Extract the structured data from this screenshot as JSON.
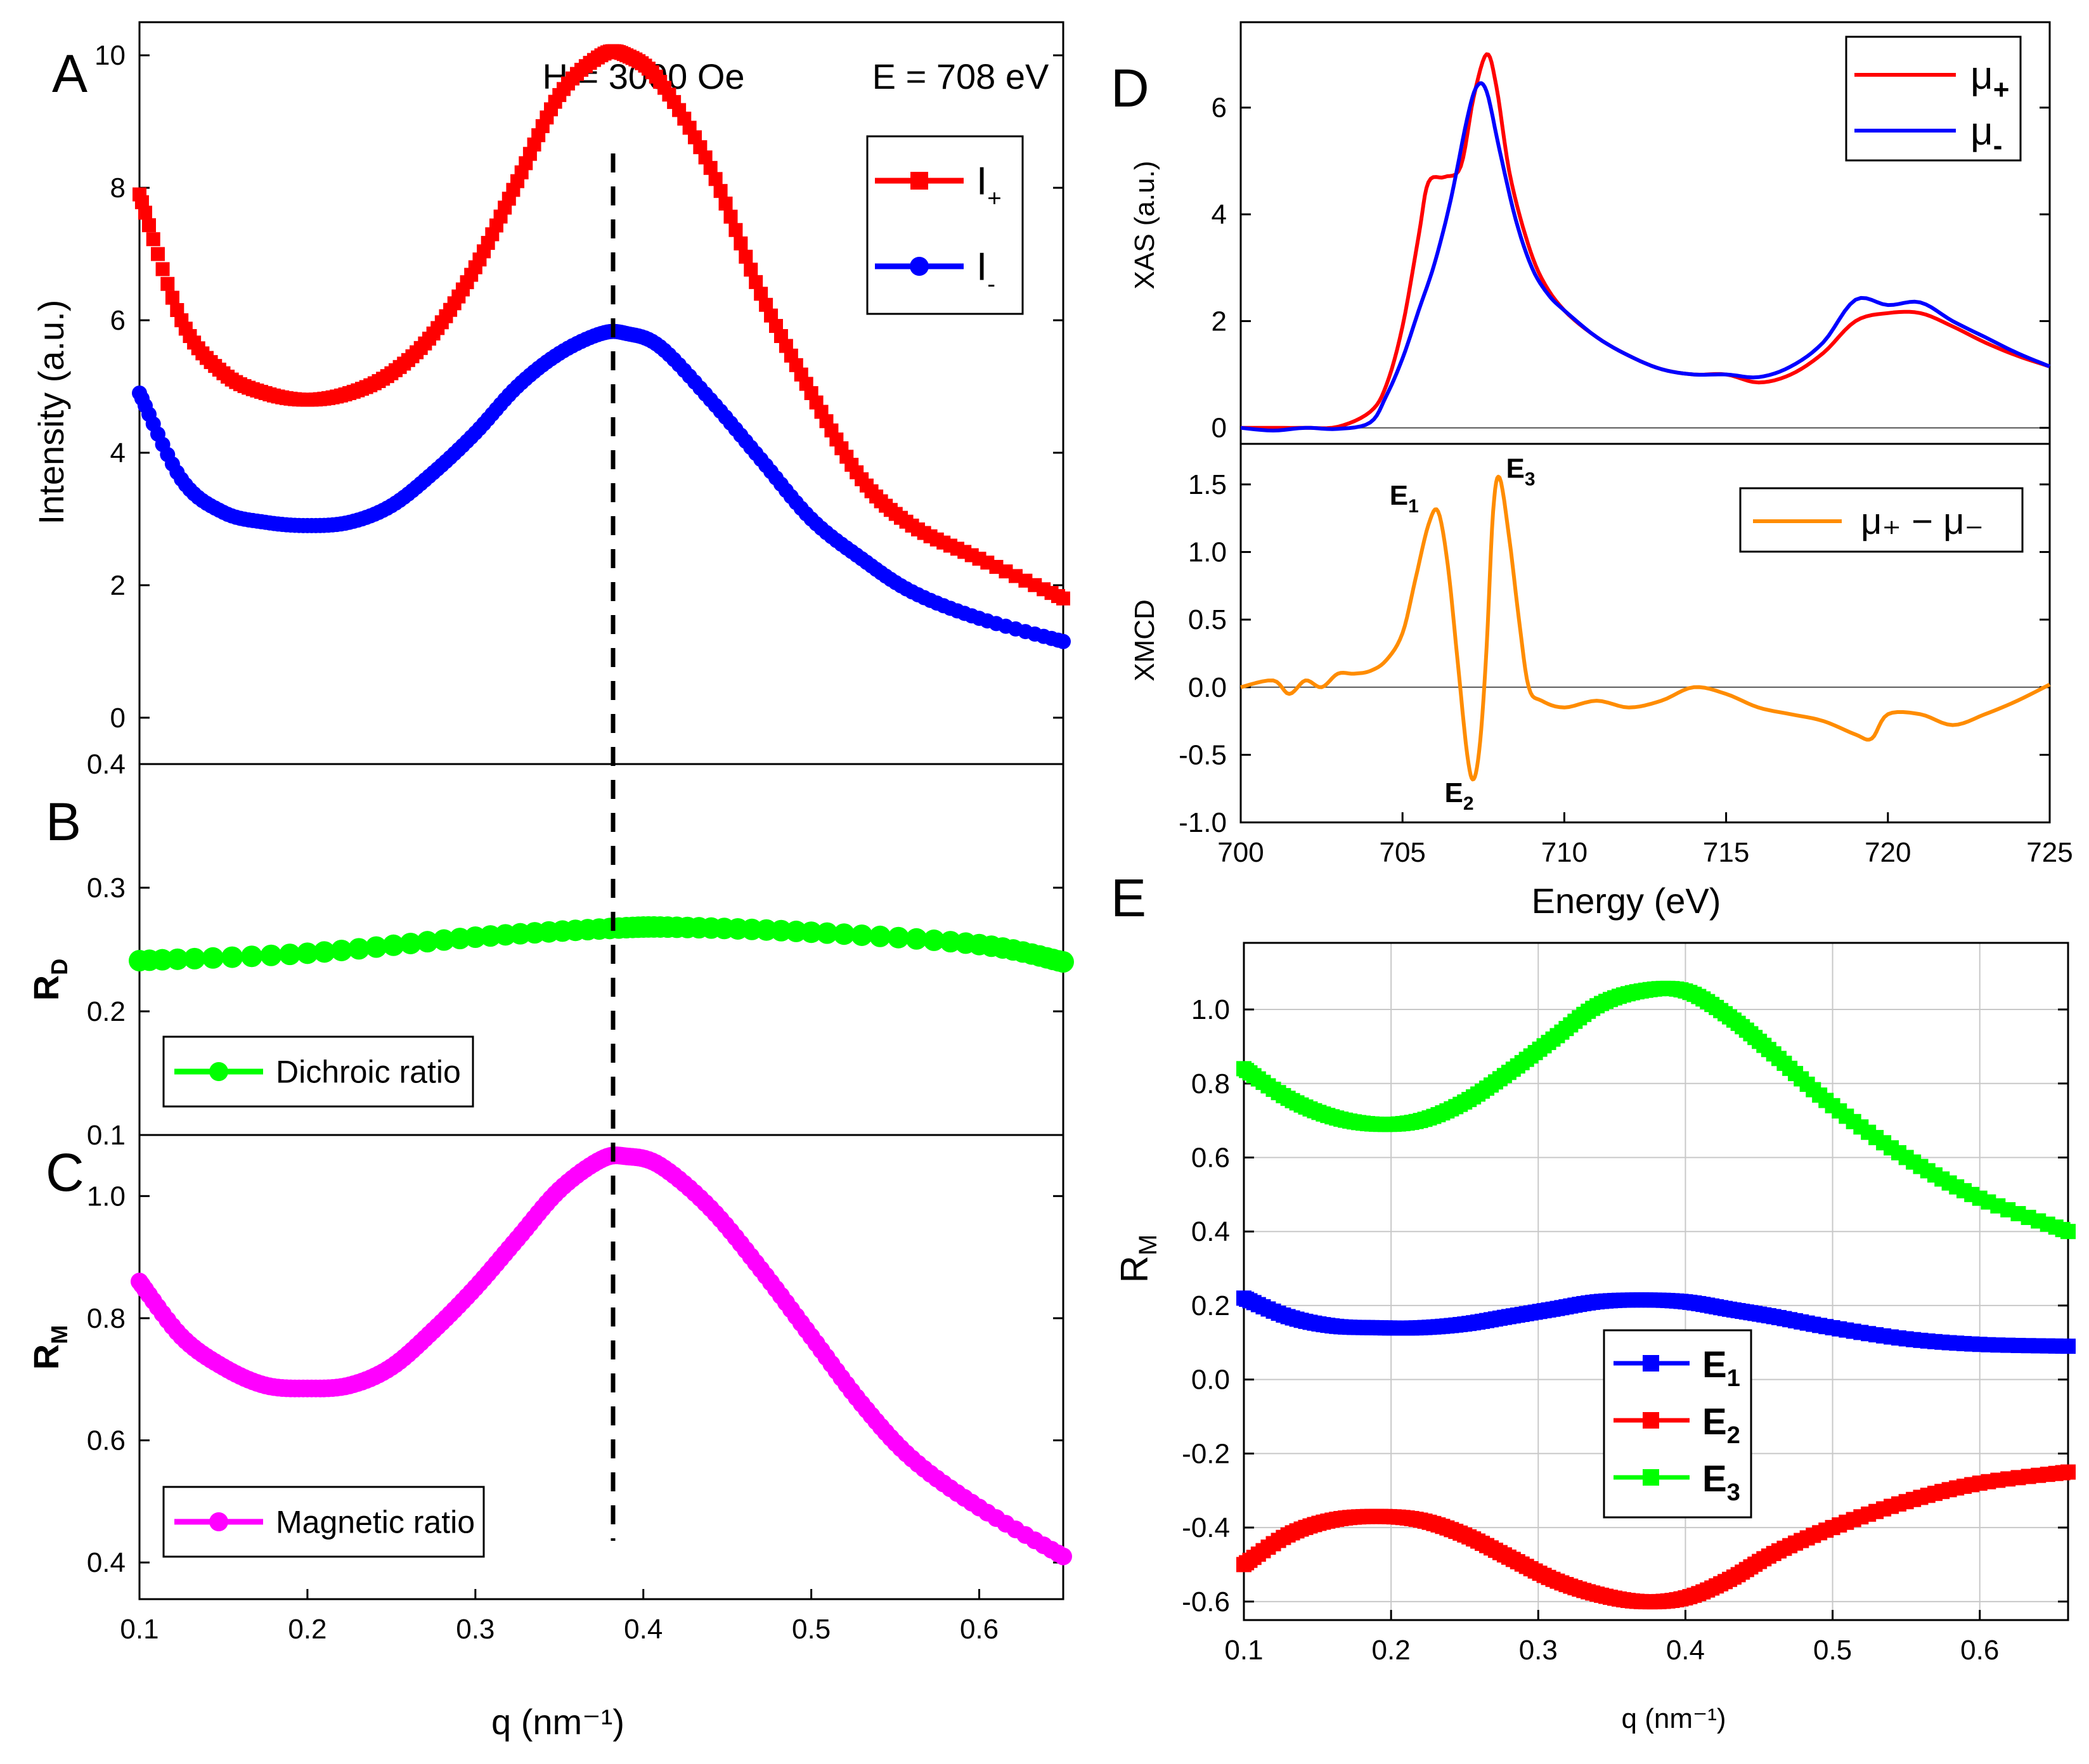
{
  "figure": {
    "header": {
      "field": "H = 3000 Oe",
      "energy": "E = 708 eV"
    }
  },
  "chart_data": [
    {
      "id": "A",
      "panel_label": "A",
      "type": "scatter",
      "ylabel": "Intensity (a.u.)",
      "xlabel": "",
      "xlim": [
        0.1,
        0.65
      ],
      "ylim": [
        -0.7,
        10.5
      ],
      "yticks": [
        0,
        2,
        4,
        6,
        8,
        10
      ],
      "legend": {
        "position": "top-right"
      },
      "series": [
        {
          "name": "I",
          "sub": "+",
          "color": "#ff0000",
          "marker": "square",
          "x": [
            0.1,
            0.125,
            0.15,
            0.175,
            0.2,
            0.225,
            0.25,
            0.275,
            0.3,
            0.325,
            0.35,
            0.375,
            0.39,
            0.41,
            0.44,
            0.47,
            0.5,
            0.53,
            0.56,
            0.6,
            0.65
          ],
          "y": [
            7.9,
            6.0,
            5.2,
            4.9,
            4.8,
            4.9,
            5.2,
            5.8,
            6.8,
            8.1,
            9.4,
            10.0,
            10.0,
            9.6,
            8.3,
            6.4,
            4.9,
            3.6,
            2.9,
            2.4,
            1.8
          ]
        },
        {
          "name": "I",
          "sub": "-",
          "color": "#0000ff",
          "marker": "circle",
          "x": [
            0.1,
            0.125,
            0.15,
            0.175,
            0.2,
            0.225,
            0.25,
            0.275,
            0.3,
            0.325,
            0.35,
            0.375,
            0.39,
            0.41,
            0.44,
            0.47,
            0.5,
            0.53,
            0.56,
            0.6,
            0.65
          ],
          "y": [
            4.9,
            3.6,
            3.1,
            2.95,
            2.9,
            2.95,
            3.2,
            3.7,
            4.3,
            5.0,
            5.5,
            5.8,
            5.8,
            5.6,
            4.8,
            3.9,
            3.0,
            2.4,
            1.9,
            1.5,
            1.15
          ]
        }
      ]
    },
    {
      "id": "B",
      "panel_label": "B",
      "type": "scatter",
      "ylabel": "R",
      "ylabel_sub": "D",
      "xlabel": "",
      "xlim": [
        0.1,
        0.65
      ],
      "ylim": [
        0.1,
        0.4
      ],
      "yticks": [
        0.1,
        0.2,
        0.3,
        0.4
      ],
      "legend": {
        "position": "bottom-left"
      },
      "series": [
        {
          "name": "Dichroic ratio",
          "color": "#00ff00",
          "marker": "circle",
          "x": [
            0.1,
            0.2,
            0.3,
            0.38,
            0.42,
            0.5,
            0.6,
            0.65
          ],
          "y": [
            0.241,
            0.247,
            0.26,
            0.267,
            0.268,
            0.264,
            0.254,
            0.24
          ]
        }
      ]
    },
    {
      "id": "C",
      "panel_label": "C",
      "type": "scatter",
      "ylabel": "R",
      "ylabel_sub": "M",
      "xlabel": "q (nm⁻¹)",
      "xlim": [
        0.1,
        0.65
      ],
      "ylim": [
        0.34,
        1.1
      ],
      "yticks": [
        0.4,
        0.6,
        0.8,
        1.0
      ],
      "xticks": [
        0.1,
        0.2,
        0.3,
        0.4,
        0.5,
        0.6
      ],
      "legend": {
        "position": "bottom-left"
      },
      "series": [
        {
          "name": "Magnetic ratio",
          "color": "#ff00ff",
          "marker": "circle",
          "x": [
            0.1,
            0.125,
            0.15,
            0.175,
            0.2,
            0.225,
            0.25,
            0.275,
            0.3,
            0.325,
            0.35,
            0.375,
            0.39,
            0.41,
            0.44,
            0.47,
            0.5,
            0.53,
            0.56,
            0.6,
            0.65
          ],
          "y": [
            0.86,
            0.77,
            0.72,
            0.69,
            0.685,
            0.69,
            0.72,
            0.78,
            0.85,
            0.93,
            1.01,
            1.06,
            1.065,
            1.05,
            0.98,
            0.88,
            0.77,
            0.66,
            0.57,
            0.49,
            0.41
          ]
        }
      ]
    },
    {
      "id": "D_top",
      "panel_label": "D",
      "type": "line",
      "ylabel": "XAS (a.u.)",
      "xlabel": "",
      "xlim": [
        700,
        725
      ],
      "ylim": [
        -0.3,
        7.6
      ],
      "yticks": [
        0,
        2,
        4,
        6
      ],
      "legend": {
        "position": "top-right"
      },
      "series": [
        {
          "name": "μ",
          "sub": "+",
          "color": "#ff0000",
          "x": [
            700,
            701,
            702,
            703,
            704,
            704.5,
            705,
            705.5,
            705.8,
            706.3,
            706.8,
            707.2,
            707.6,
            707.9,
            708.3,
            708.8,
            709.3,
            710,
            711,
            712,
            713,
            714,
            715,
            716,
            717,
            718,
            719,
            720,
            721,
            722,
            723,
            724,
            725
          ],
          "y": [
            0,
            0,
            0,
            0.02,
            0.3,
            0.8,
            1.9,
            3.6,
            4.6,
            4.7,
            4.9,
            6.2,
            7.0,
            6.4,
            4.8,
            3.6,
            2.8,
            2.2,
            1.7,
            1.35,
            1.1,
            1.0,
            1.0,
            0.85,
            1.0,
            1.4,
            2.0,
            2.15,
            2.15,
            1.9,
            1.6,
            1.35,
            1.15
          ]
        },
        {
          "name": "μ",
          "sub": "-",
          "color": "#0000ff",
          "x": [
            700,
            701,
            702,
            703,
            704,
            704.5,
            705,
            705.5,
            706,
            706.5,
            707,
            707.3,
            707.6,
            708,
            708.5,
            709,
            709.5,
            710,
            711,
            712,
            713,
            714,
            715,
            716,
            717,
            718,
            719,
            720,
            721,
            722,
            723,
            724,
            725
          ],
          "y": [
            0,
            -0.05,
            0,
            -0.02,
            0.1,
            0.6,
            1.3,
            2.2,
            3.1,
            4.3,
            5.8,
            6.4,
            6.3,
            5.2,
            3.9,
            3.0,
            2.5,
            2.2,
            1.7,
            1.35,
            1.1,
            1.0,
            1.0,
            0.95,
            1.15,
            1.6,
            2.4,
            2.3,
            2.35,
            2.0,
            1.7,
            1.4,
            1.15
          ]
        }
      ]
    },
    {
      "id": "D_bottom",
      "panel_label": "",
      "type": "line",
      "ylabel": "XMCD",
      "xlabel": "Energy (eV)",
      "xlim": [
        700,
        725
      ],
      "ylim": [
        -1.0,
        1.8
      ],
      "yticks": [
        -1.0,
        -0.5,
        0.0,
        0.5,
        1.0,
        1.5
      ],
      "xticks": [
        700,
        705,
        710,
        715,
        720,
        725
      ],
      "legend": {
        "position": "top-right"
      },
      "annotations": [
        {
          "text": "E",
          "sub": "1",
          "x": 704.6,
          "y": 1.35
        },
        {
          "text": "E",
          "sub": "2",
          "x": 706.3,
          "y": -0.85
        },
        {
          "text": "E",
          "sub": "3",
          "x": 708.2,
          "y": 1.55
        }
      ],
      "series": [
        {
          "name": "μ₊ − μ₋",
          "color": "#ff8c00",
          "x": [
            700,
            701,
            701.5,
            702,
            702.5,
            703,
            703.5,
            704,
            704.5,
            705,
            705.4,
            705.8,
            706.1,
            706.4,
            706.7,
            707,
            707.2,
            707.4,
            707.6,
            707.8,
            708,
            708.3,
            708.6,
            708.9,
            709.3,
            710,
            711,
            712,
            713,
            714,
            715,
            716,
            717,
            718,
            719,
            719.5,
            720,
            721,
            722,
            723,
            724,
            725
          ],
          "y": [
            0,
            0.05,
            -0.05,
            0.05,
            0,
            0.1,
            0.1,
            0.12,
            0.2,
            0.4,
            0.8,
            1.2,
            1.3,
            0.9,
            0.2,
            -0.5,
            -0.68,
            -0.4,
            0.3,
            1.3,
            1.55,
            1.1,
            0.5,
            0.0,
            -0.1,
            -0.15,
            -0.1,
            -0.15,
            -0.1,
            0,
            -0.05,
            -0.15,
            -0.2,
            -0.25,
            -0.35,
            -0.38,
            -0.2,
            -0.2,
            -0.28,
            -0.2,
            -0.1,
            0.02
          ]
        }
      ]
    },
    {
      "id": "E",
      "panel_label": "E",
      "type": "scatter",
      "ylabel": "R",
      "ylabel_sub": "M",
      "xlabel": "q (nm⁻¹)",
      "xlim": [
        0.1,
        0.66
      ],
      "ylim": [
        -0.65,
        1.18
      ],
      "yticks": [
        -0.6,
        -0.4,
        -0.2,
        0.0,
        0.2,
        0.4,
        0.6,
        0.8,
        1.0
      ],
      "xticks": [
        0.1,
        0.2,
        0.3,
        0.4,
        0.5,
        0.6
      ],
      "grid": true,
      "legend": {
        "position": "center"
      },
      "series": [
        {
          "name": "E",
          "sub": "1",
          "color": "#0000ff",
          "marker": "square",
          "x": [
            0.1,
            0.13,
            0.16,
            0.19,
            0.22,
            0.25,
            0.28,
            0.31,
            0.34,
            0.37,
            0.4,
            0.43,
            0.46,
            0.5,
            0.55,
            0.6,
            0.66
          ],
          "y": [
            0.22,
            0.17,
            0.145,
            0.14,
            0.14,
            0.15,
            0.17,
            0.19,
            0.21,
            0.215,
            0.21,
            0.19,
            0.17,
            0.14,
            0.11,
            0.095,
            0.09
          ]
        },
        {
          "name": "E",
          "sub": "2",
          "color": "#ff0000",
          "marker": "square",
          "x": [
            0.1,
            0.13,
            0.16,
            0.19,
            0.22,
            0.25,
            0.28,
            0.31,
            0.34,
            0.37,
            0.4,
            0.43,
            0.46,
            0.5,
            0.55,
            0.6,
            0.66
          ],
          "y": [
            -0.5,
            -0.42,
            -0.38,
            -0.37,
            -0.38,
            -0.42,
            -0.48,
            -0.54,
            -0.58,
            -0.6,
            -0.59,
            -0.54,
            -0.47,
            -0.4,
            -0.33,
            -0.28,
            -0.25
          ]
        },
        {
          "name": "E",
          "sub": "3",
          "color": "#00ff00",
          "marker": "square",
          "x": [
            0.1,
            0.13,
            0.16,
            0.19,
            0.22,
            0.25,
            0.28,
            0.31,
            0.34,
            0.37,
            0.4,
            0.43,
            0.46,
            0.5,
            0.55,
            0.6,
            0.66
          ],
          "y": [
            0.84,
            0.76,
            0.71,
            0.69,
            0.7,
            0.75,
            0.83,
            0.92,
            1.01,
            1.05,
            1.05,
            0.98,
            0.88,
            0.74,
            0.6,
            0.49,
            0.4
          ]
        }
      ]
    }
  ]
}
